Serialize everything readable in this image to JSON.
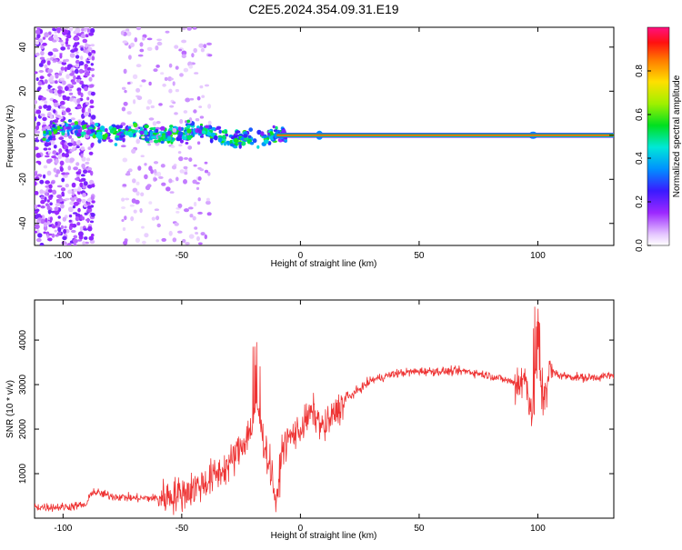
{
  "page_title": "C2E5.2024.354.09.31.E19",
  "chart_data": [
    {
      "type": "heatmap",
      "xlabel": "Height of straight line (km)",
      "ylabel": "Frequency (Hz)",
      "xlim": [
        -112,
        132
      ],
      "ylim": [
        -50,
        49
      ],
      "x_ticks": [
        -100,
        -50,
        0,
        50,
        100
      ],
      "y_ticks": [
        -40,
        -20,
        0,
        20,
        40
      ],
      "colorbar": {
        "label": "Normalized spectral amplitude",
        "range": [
          0,
          1
        ],
        "ticks": [
          0.0,
          0.2,
          0.4,
          0.6,
          0.8
        ]
      },
      "ridge": {
        "description": "energy concentrated near 0 Hz; noisy/broad below about -10 km, narrow strong line above",
        "center_points": [
          {
            "x": -105,
            "y": 4
          },
          {
            "x": -90,
            "y": 2
          },
          {
            "x": -80,
            "y": 0
          },
          {
            "x": -70,
            "y": 2
          },
          {
            "x": -60,
            "y": 0
          },
          {
            "x": -50,
            "y": 1
          },
          {
            "x": -40,
            "y": 2
          },
          {
            "x": -30,
            "y": -2
          },
          {
            "x": -20,
            "y": -1
          },
          {
            "x": -10,
            "y": 0
          },
          {
            "x": 0,
            "y": 0
          },
          {
            "x": 50,
            "y": 0
          },
          {
            "x": 100,
            "y": 0
          },
          {
            "x": 130,
            "y": 0
          }
        ]
      }
    },
    {
      "type": "line",
      "xlabel": "Height of straight line (km)",
      "ylabel": "SNR (10 * v/v)",
      "xlim": [
        -112,
        132
      ],
      "ylim": [
        0,
        4900
      ],
      "x_ticks": [
        -100,
        -50,
        0,
        50,
        100
      ],
      "y_ticks": [
        1000,
        2000,
        3000,
        4000
      ],
      "color": "#ee3333",
      "series": [
        {
          "name": "SNR",
          "x": [
            -112,
            -100,
            -90,
            -88,
            -80,
            -70,
            -60,
            -50,
            -40,
            -30,
            -25,
            -20,
            -18,
            -15,
            -12,
            -10,
            -8,
            -5,
            0,
            5,
            10,
            15,
            20,
            25,
            30,
            40,
            50,
            60,
            70,
            80,
            90,
            95,
            98,
            100,
            102,
            105,
            110,
            120,
            132
          ],
          "values": [
            250,
            250,
            300,
            600,
            500,
            450,
            450,
            550,
            800,
            1200,
            1600,
            2100,
            2500,
            1600,
            1000,
            200,
            1500,
            1800,
            2000,
            2400,
            2000,
            2400,
            2700,
            2900,
            3100,
            3250,
            3300,
            3300,
            3300,
            3200,
            3050,
            3100,
            2300,
            3800,
            2700,
            3300,
            3200,
            3150,
            3200
          ]
        }
      ]
    }
  ]
}
